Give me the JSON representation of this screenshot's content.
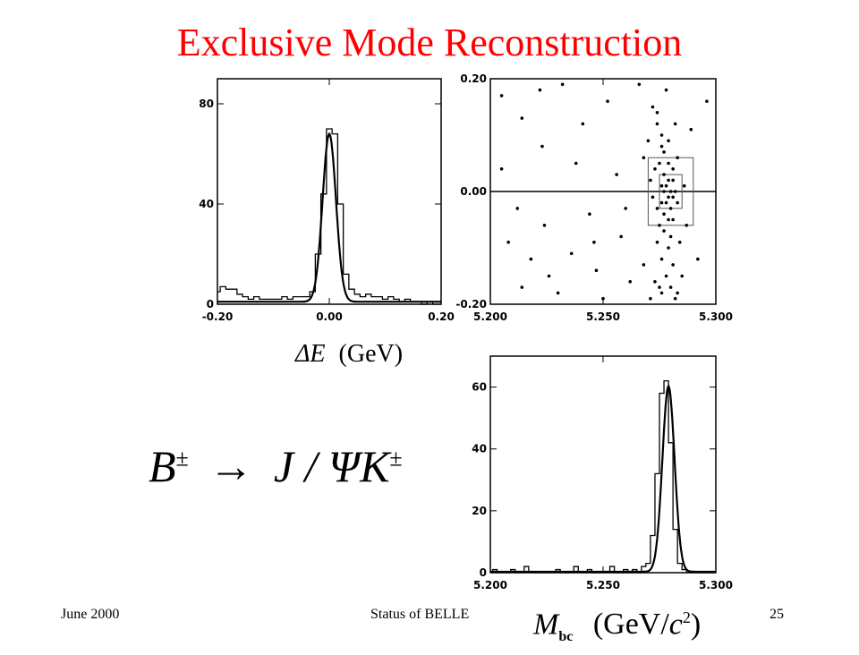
{
  "slide": {
    "title": "Exclusive Mode Reconstruction",
    "footer_left": "June 2000",
    "footer_center": "Status of BELLE",
    "footer_right": "25",
    "title_color": "#ff0000"
  },
  "equations": {
    "de_symbol": "ΔE",
    "de_unit": "(GeV)",
    "decay_lhs": "B",
    "decay_lhs_sup": "±",
    "decay_arrow": "→",
    "decay_rhs": "J / ΨK",
    "decay_rhs_sup": "±",
    "mbc_symbol": "M",
    "mbc_sub": "bc",
    "mbc_unit_open": "(GeV/",
    "mbc_unit_c": "c",
    "mbc_unit_sup": "2",
    "mbc_unit_close": ")"
  },
  "chart_data": [
    {
      "type": "line",
      "name": "delta-e-histogram",
      "xlim": [
        -0.2,
        0.2
      ],
      "ylim": [
        0,
        90
      ],
      "xticks": [
        "-0.20",
        "0.00",
        "0.20"
      ],
      "yticks": [
        "0",
        "40",
        "80"
      ],
      "histogram": {
        "x": [
          -0.2,
          -0.19,
          -0.18,
          -0.17,
          -0.16,
          -0.15,
          -0.14,
          -0.13,
          -0.12,
          -0.11,
          -0.1,
          -0.09,
          -0.08,
          -0.07,
          -0.06,
          -0.05,
          -0.04,
          -0.03,
          -0.02,
          -0.01,
          0.0,
          0.01,
          0.02,
          0.03,
          0.04,
          0.05,
          0.06,
          0.07,
          0.08,
          0.09,
          0.1,
          0.11,
          0.12,
          0.13,
          0.14,
          0.15,
          0.16,
          0.17,
          0.18,
          0.19,
          0.2
        ],
        "y": [
          5,
          7,
          6,
          6,
          4,
          3,
          2,
          3,
          2,
          2,
          2,
          2,
          3,
          2,
          3,
          3,
          3,
          5,
          20,
          44,
          70,
          68,
          40,
          12,
          6,
          4,
          3,
          4,
          3,
          3,
          2,
          3,
          2,
          1,
          2,
          1,
          1,
          0,
          1,
          0,
          0
        ]
      },
      "fit": {
        "mean": 0.0,
        "sigma": 0.012,
        "peak": 67,
        "background": 1.0
      }
    },
    {
      "type": "scatter",
      "name": "de-vs-mbc-scatter",
      "xlim": [
        5.2,
        5.3
      ],
      "ylim": [
        -0.2,
        0.2
      ],
      "xticks": [
        "5.200",
        "5.250",
        "5.300"
      ],
      "yticks": [
        "-0.20",
        "0.00",
        "0.20"
      ],
      "signal_boxes": [
        {
          "x": [
            5.27,
            5.29
          ],
          "y": [
            -0.06,
            0.06
          ]
        },
        {
          "x": [
            5.275,
            5.285
          ],
          "y": [
            -0.03,
            0.03
          ]
        }
      ],
      "points": [
        [
          5.205,
          0.17
        ],
        [
          5.214,
          0.13
        ],
        [
          5.223,
          0.08
        ],
        [
          5.205,
          0.04
        ],
        [
          5.212,
          -0.03
        ],
        [
          5.224,
          -0.06
        ],
        [
          5.208,
          -0.09
        ],
        [
          5.218,
          -0.12
        ],
        [
          5.214,
          -0.17
        ],
        [
          5.232,
          0.19
        ],
        [
          5.238,
          0.05
        ],
        [
          5.244,
          -0.04
        ],
        [
          5.236,
          -0.11
        ],
        [
          5.247,
          -0.14
        ],
        [
          5.252,
          0.16
        ],
        [
          5.256,
          0.03
        ],
        [
          5.258,
          -0.08
        ],
        [
          5.262,
          -0.16
        ],
        [
          5.23,
          -0.18
        ],
        [
          5.241,
          0.12
        ],
        [
          5.266,
          0.19
        ],
        [
          5.268,
          0.06
        ],
        [
          5.246,
          -0.09
        ],
        [
          5.222,
          0.18
        ],
        [
          5.226,
          -0.15
        ],
        [
          5.26,
          -0.03
        ],
        [
          5.25,
          -0.19
        ],
        [
          5.272,
          0.15
        ],
        [
          5.275,
          -0.17
        ],
        [
          5.278,
          0.18
        ],
        [
          5.282,
          -0.19
        ],
        [
          5.289,
          0.11
        ],
        [
          5.292,
          -0.12
        ],
        [
          5.296,
          0.16
        ],
        [
          5.268,
          -0.13
        ],
        [
          5.271,
          0.02
        ],
        [
          5.274,
          0.14
        ],
        [
          5.274,
          0.12
        ],
        [
          5.276,
          0.1
        ],
        [
          5.276,
          0.08
        ],
        [
          5.277,
          0.07
        ],
        [
          5.275,
          0.05
        ],
        [
          5.273,
          0.04
        ],
        [
          5.279,
          0.05
        ],
        [
          5.281,
          0.04
        ],
        [
          5.277,
          0.03
        ],
        [
          5.279,
          0.02
        ],
        [
          5.281,
          0.02
        ],
        [
          5.276,
          0.01
        ],
        [
          5.278,
          0.01
        ],
        [
          5.28,
          0.0
        ],
        [
          5.282,
          0.0
        ],
        [
          5.277,
          0.0
        ],
        [
          5.279,
          -0.01
        ],
        [
          5.281,
          -0.01
        ],
        [
          5.276,
          -0.02
        ],
        [
          5.278,
          -0.02
        ],
        [
          5.28,
          -0.03
        ],
        [
          5.283,
          -0.02
        ],
        [
          5.274,
          -0.03
        ],
        [
          5.277,
          -0.04
        ],
        [
          5.279,
          -0.05
        ],
        [
          5.281,
          -0.05
        ],
        [
          5.275,
          -0.06
        ],
        [
          5.277,
          -0.07
        ],
        [
          5.28,
          -0.08
        ],
        [
          5.274,
          -0.09
        ],
        [
          5.279,
          -0.1
        ],
        [
          5.276,
          -0.12
        ],
        [
          5.281,
          -0.13
        ],
        [
          5.278,
          -0.15
        ],
        [
          5.273,
          -0.16
        ],
        [
          5.276,
          -0.18
        ],
        [
          5.28,
          -0.17
        ],
        [
          5.283,
          -0.18
        ],
        [
          5.285,
          -0.15
        ],
        [
          5.287,
          -0.06
        ],
        [
          5.286,
          0.01
        ],
        [
          5.272,
          -0.01
        ],
        [
          5.271,
          -0.19
        ],
        [
          5.283,
          0.06
        ],
        [
          5.284,
          -0.09
        ],
        [
          5.27,
          0.09
        ],
        [
          5.279,
          0.09
        ],
        [
          5.282,
          0.12
        ]
      ]
    },
    {
      "type": "line",
      "name": "mbc-histogram",
      "xlim": [
        5.2,
        5.3
      ],
      "ylim": [
        0,
        70
      ],
      "xticks": [
        "5.200",
        "5.250",
        "5.300"
      ],
      "yticks": [
        "0",
        "20",
        "40",
        "60"
      ],
      "histogram": {
        "x": [
          5.2,
          5.202,
          5.204,
          5.206,
          5.208,
          5.21,
          5.212,
          5.214,
          5.216,
          5.218,
          5.22,
          5.222,
          5.224,
          5.226,
          5.228,
          5.23,
          5.232,
          5.234,
          5.236,
          5.238,
          5.24,
          5.242,
          5.244,
          5.246,
          5.248,
          5.25,
          5.252,
          5.254,
          5.256,
          5.258,
          5.26,
          5.262,
          5.264,
          5.266,
          5.268,
          5.27,
          5.272,
          5.274,
          5.276,
          5.278,
          5.28,
          5.282,
          5.284,
          5.286,
          5.288,
          5.29,
          5.292,
          5.294,
          5.296,
          5.298
        ],
        "y": [
          0,
          1,
          0,
          0,
          0,
          1,
          0,
          0,
          2,
          0,
          0,
          0,
          0,
          0,
          0,
          1,
          0,
          0,
          0,
          2,
          0,
          0,
          1,
          0,
          0,
          0,
          0,
          2,
          0,
          0,
          1,
          0,
          1,
          0,
          2,
          3,
          12,
          32,
          58,
          62,
          42,
          14,
          3,
          1,
          0,
          0,
          0,
          0,
          0,
          0
        ]
      },
      "fit": {
        "mean": 5.279,
        "sigma": 0.0027,
        "peak": 60,
        "background": 0.3
      }
    }
  ]
}
